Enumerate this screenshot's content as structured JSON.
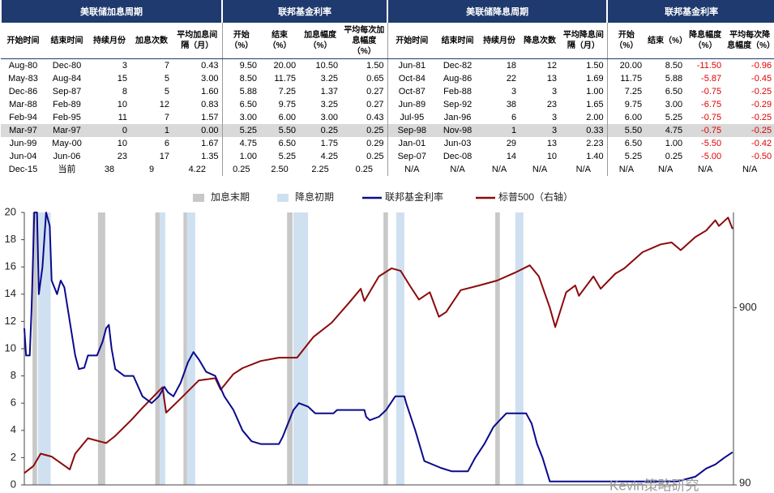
{
  "table": {
    "group_headers": [
      "美联储加息周期",
      "联邦基金利率",
      "美联储降息周期",
      "联邦基金利率"
    ],
    "column_headers": [
      "开始时间",
      "结束时间",
      "持续月份",
      "加息次数",
      "平均加息间隔（月）",
      "开始（%）",
      "结束（%）",
      "加息幅度（%）",
      "平均每次加息幅度（%）",
      "开始时间",
      "结束时间",
      "持续月份",
      "降息次数",
      "平均降息间隔（月）",
      "开始（%）",
      "结束（%）",
      "降息幅度（%）",
      "平均每次降息幅度（%）"
    ],
    "rows": [
      [
        "Aug-80",
        "Dec-80",
        "3",
        "7",
        "0.43",
        "9.50",
        "20.00",
        "10.50",
        "1.50",
        "Jun-81",
        "Dec-82",
        "18",
        "12",
        "1.50",
        "20.00",
        "8.50",
        "-11.50",
        "-0.96"
      ],
      [
        "May-83",
        "Aug-84",
        "15",
        "5",
        "3.00",
        "8.50",
        "11.75",
        "3.25",
        "0.65",
        "Oct-84",
        "Aug-86",
        "22",
        "13",
        "1.69",
        "11.75",
        "5.88",
        "-5.87",
        "-0.45"
      ],
      [
        "Dec-86",
        "Sep-87",
        "8",
        "5",
        "1.60",
        "5.88",
        "7.25",
        "1.37",
        "0.27",
        "Oct-87",
        "Feb-88",
        "3",
        "3",
        "1.00",
        "7.25",
        "6.50",
        "-0.75",
        "-0.25"
      ],
      [
        "Mar-88",
        "Feb-89",
        "10",
        "12",
        "0.83",
        "6.50",
        "9.75",
        "3.25",
        "0.27",
        "Jun-89",
        "Sep-92",
        "38",
        "23",
        "1.65",
        "9.75",
        "3.00",
        "-6.75",
        "-0.29"
      ],
      [
        "Feb-94",
        "Feb-95",
        "11",
        "7",
        "1.57",
        "3.00",
        "6.00",
        "3.00",
        "0.43",
        "Jul-95",
        "Jan-96",
        "6",
        "3",
        "2.00",
        "6.00",
        "5.25",
        "-0.75",
        "-0.25"
      ],
      [
        "Mar-97",
        "Mar-97",
        "0",
        "1",
        "0.00",
        "5.25",
        "5.50",
        "0.25",
        "0.25",
        "Sep-98",
        "Nov-98",
        "1",
        "3",
        "0.33",
        "5.50",
        "4.75",
        "-0.75",
        "-0.25"
      ],
      [
        "Jun-99",
        "May-00",
        "10",
        "6",
        "1.67",
        "4.75",
        "6.50",
        "1.75",
        "0.29",
        "Jan-01",
        "Jun-03",
        "29",
        "13",
        "2.23",
        "6.50",
        "1.00",
        "-5.50",
        "-0.42"
      ],
      [
        "Jun-04",
        "Jun-06",
        "23",
        "17",
        "1.35",
        "1.00",
        "5.25",
        "4.25",
        "0.25",
        "Sep-07",
        "Dec-08",
        "14",
        "10",
        "1.40",
        "5.25",
        "0.25",
        "-5.00",
        "-0.50"
      ],
      [
        "Dec-15",
        "当前",
        "38",
        "9",
        "4.22",
        "0.25",
        "2.50",
        "2.25",
        "0.25",
        "N/A",
        "N/A",
        "N/A",
        "N/A",
        "N/A",
        "N/A",
        "N/A",
        "N/A",
        "N/A"
      ]
    ]
  },
  "chart_data": {
    "type": "line",
    "xlim": [
      1980,
      2019
    ],
    "ylim": [
      0,
      20
    ],
    "yticks": [
      0,
      2,
      4,
      6,
      8,
      10,
      12,
      14,
      16,
      18,
      20
    ],
    "y2lim": [
      90,
      3100
    ],
    "y2_log": true,
    "y2ticks": [
      900,
      90
    ],
    "bands": [
      {
        "name": "加息末期",
        "color": "#c8c8c8",
        "periods": [
          [
            1980.45,
            1980.7
          ],
          [
            1984.05,
            1984.45
          ],
          [
            1987.2,
            1987.45
          ],
          [
            1988.75,
            1988.95
          ],
          [
            1994.45,
            1994.75
          ],
          [
            1999.75,
            2000.0
          ],
          [
            2005.9,
            2006.15
          ]
        ]
      },
      {
        "name": "降息初期",
        "color": "#cfe0f0",
        "periods": [
          [
            1980.75,
            1981.45
          ],
          [
            1987.45,
            1987.75
          ],
          [
            1988.95,
            1989.4
          ],
          [
            1994.8,
            1995.6
          ],
          [
            2000.45,
            2000.9
          ],
          [
            2007.0,
            2007.45
          ]
        ]
      }
    ],
    "series": [
      {
        "name": "联邦基金利率",
        "color": "#0a0a8c",
        "x": [
          1980.0,
          1980.1,
          1980.3,
          1980.4,
          1980.55,
          1980.7,
          1980.8,
          1981.0,
          1981.2,
          1981.4,
          1981.5,
          1981.8,
          1982.0,
          1982.2,
          1982.5,
          1982.8,
          1983.0,
          1983.3,
          1983.5,
          1984.0,
          1984.3,
          1984.5,
          1984.65,
          1984.8,
          1985.0,
          1985.5,
          1986.0,
          1986.5,
          1987.0,
          1987.4,
          1987.7,
          1987.9,
          1988.2,
          1988.6,
          1989.0,
          1989.3,
          1989.6,
          1990.0,
          1990.5,
          1991.0,
          1991.5,
          1992.0,
          1992.5,
          1993.0,
          1994.0,
          1994.2,
          1994.5,
          1994.8,
          1995.1,
          1995.6,
          1996.0,
          1997.0,
          1997.2,
          1998.7,
          1998.8,
          1999.0,
          1999.5,
          1999.9,
          2000.4,
          2000.9,
          2001.0,
          2001.5,
          2002.0,
          2002.9,
          2003.5,
          2004.4,
          2004.8,
          2005.3,
          2005.8,
          2006.5,
          2007.6,
          2007.9,
          2008.2,
          2008.5,
          2008.9,
          2015.9,
          2016.9,
          2017.5,
          2018.0,
          2018.5,
          2018.95
        ],
        "values": [
          11.5,
          9.5,
          9.5,
          13,
          20,
          20,
          14,
          16,
          20,
          19,
          15,
          14,
          15,
          14.5,
          12,
          9.5,
          8.5,
          8.6,
          9.5,
          9.5,
          10.5,
          11.5,
          11.75,
          10,
          8.5,
          8,
          8,
          6.5,
          6.0,
          6.5,
          7.2,
          6.8,
          6.5,
          7.5,
          9,
          9.75,
          9.2,
          8.3,
          8,
          6.5,
          5.5,
          4,
          3.2,
          3,
          3,
          3.5,
          4.5,
          5.5,
          6,
          5.75,
          5.25,
          5.25,
          5.5,
          5.5,
          5.0,
          4.75,
          5,
          5.5,
          6.5,
          6.5,
          6,
          4,
          1.75,
          1.25,
          1.0,
          1.0,
          2,
          3,
          4.25,
          5.25,
          5.25,
          4.5,
          3,
          2,
          0.25,
          0.25,
          0.6,
          1.2,
          1.5,
          2,
          2.4
        ]
      },
      {
        "name": "标普500（右轴）",
        "color": "#8b0a0a",
        "axis": "y2",
        "x": [
          1980.0,
          1980.5,
          1980.9,
          1981.5,
          1982.5,
          1982.8,
          1983.5,
          1984.5,
          1985.0,
          1985.9,
          1986.5,
          1987.6,
          1987.8,
          1988.5,
          1989.6,
          1990.5,
          1990.8,
          1991.5,
          1992.0,
          1993.0,
          1994.0,
          1995.0,
          1995.9,
          1996.9,
          1997.9,
          1998.5,
          1998.7,
          1999.5,
          2000.2,
          2000.7,
          2001.2,
          2001.7,
          2002.3,
          2002.8,
          2003.2,
          2004.0,
          2005.0,
          2006.0,
          2007.0,
          2007.8,
          2008.3,
          2008.9,
          2009.2,
          2009.8,
          2010.3,
          2010.5,
          2011.3,
          2011.7,
          2012.5,
          2013.0,
          2014.0,
          2015.0,
          2015.6,
          2016.1,
          2016.9,
          2017.5,
          2018.0,
          2018.2,
          2018.7,
          2018.95
        ],
        "values": [
          105,
          115,
          135,
          130,
          110,
          135,
          165,
          155,
          170,
          210,
          245,
          320,
          230,
          270,
          350,
          360,
          310,
          380,
          410,
          450,
          470,
          470,
          615,
          740,
          970,
          1150,
          980,
          1350,
          1500,
          1450,
          1200,
          1000,
          1100,
          800,
          850,
          1130,
          1200,
          1280,
          1420,
          1560,
          1350,
          900,
          700,
          1100,
          1200,
          1050,
          1350,
          1150,
          1400,
          1500,
          1850,
          2050,
          2100,
          1900,
          2250,
          2450,
          2800,
          2600,
          2900,
          2500
        ]
      }
    ],
    "watermark": "Kevin策略研究"
  }
}
